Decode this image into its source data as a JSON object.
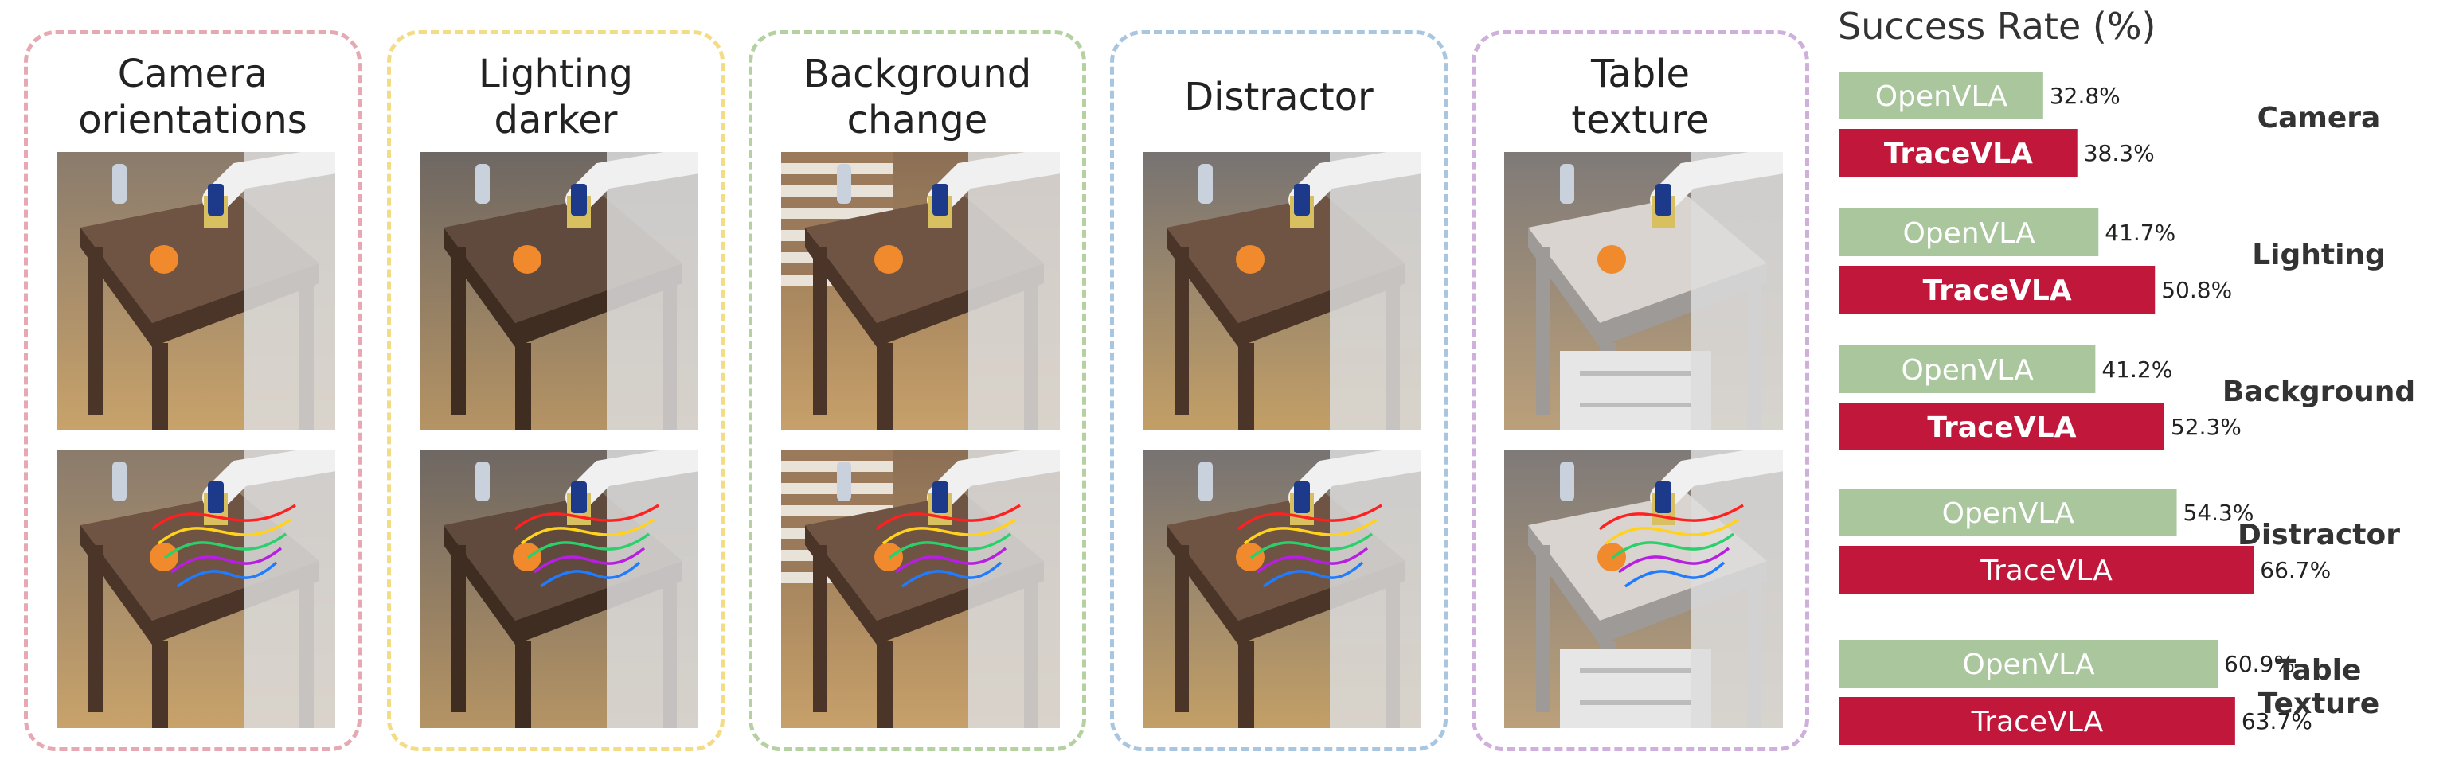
{
  "panels": [
    {
      "id": "camera",
      "title": "Camera\norientations",
      "border": "#e6a9b3"
    },
    {
      "id": "lighting",
      "title": "Lighting\ndarker",
      "border": "#f3dc86"
    },
    {
      "id": "background",
      "title": "Background\nchange",
      "border": "#b5d1a2"
    },
    {
      "id": "distractor",
      "title": "Distractor",
      "border": "#a9c6e0"
    },
    {
      "id": "table",
      "title": "Table\ntexture",
      "border": "#cfb0dc"
    }
  ],
  "chart_data": {
    "type": "bar",
    "title": "Success Rate (%)",
    "categories": [
      "Camera",
      "Lighting",
      "Background",
      "Distractor",
      "Table\nTexture"
    ],
    "series": [
      {
        "name": "OpenVLA",
        "color": "#a9c69c",
        "values": [
          32.8,
          41.7,
          41.2,
          54.3,
          60.9
        ]
      },
      {
        "name": "TraceVLA",
        "color": "#c0173a",
        "values": [
          38.3,
          50.8,
          52.3,
          66.7,
          63.7
        ]
      }
    ],
    "value_suffix": "%",
    "xlim": [
      0,
      100
    ],
    "grid": false
  }
}
